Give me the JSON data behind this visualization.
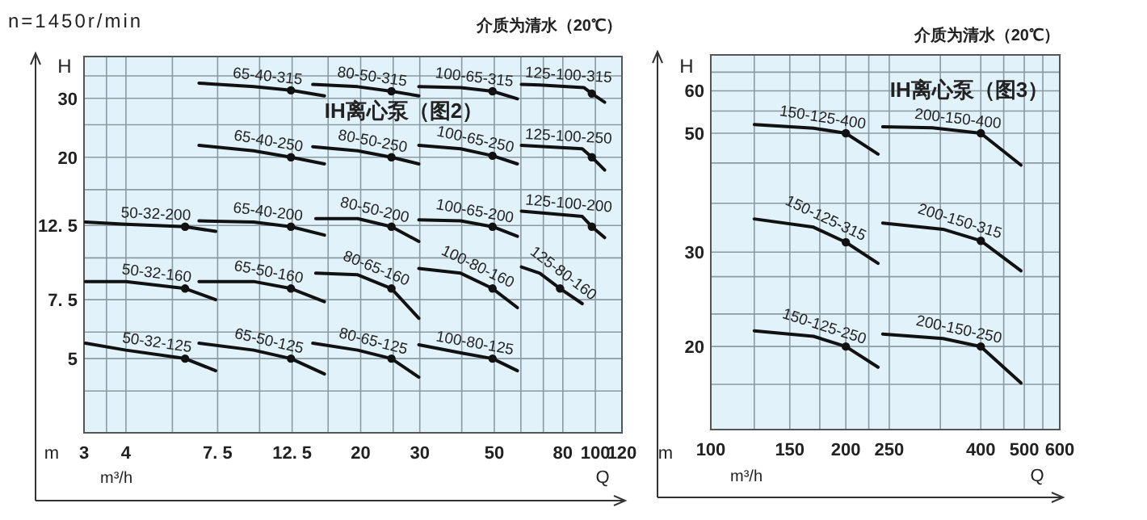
{
  "chart_data": [
    {
      "type": "line",
      "title": "IH离心泵（图2）",
      "xlabel": "Q",
      "ylabel": "H",
      "annotations": [
        "n=1450r/min",
        "介质为清水（20℃）",
        "m",
        "m³/h"
      ],
      "xlim": [
        3,
        120
      ],
      "xticks": [
        3,
        {
          "value": 3.5,
          "label": null
        },
        4,
        {
          "value": 5.5,
          "label": null
        },
        {
          "value": 7.5,
          "label": "7. 5"
        },
        {
          "value": 10,
          "label": null
        },
        {
          "value": 12.5,
          "label": "12. 5"
        },
        {
          "value": 16,
          "label": null
        },
        20,
        {
          "value": 25,
          "label": null
        },
        30,
        {
          "value": 40,
          "label": null
        },
        50,
        {
          "value": 60,
          "label": null
        },
        {
          "value": 70,
          "label": null
        },
        80,
        100,
        120
      ],
      "ylim": [
        3,
        40
      ],
      "yticks": [
        {
          "value": 4,
          "label": null
        },
        5,
        {
          "value": 6,
          "label": null
        },
        {
          "value": 7.5,
          "label": "7. 5"
        },
        {
          "value": 10,
          "label": null
        },
        {
          "value": 12.5,
          "label": "12. 5"
        },
        {
          "value": 16,
          "label": null
        },
        20,
        {
          "value": 25,
          "label": null
        },
        30,
        {
          "value": 35,
          "label": null
        }
      ],
      "grid": true,
      "log": "xy",
      "series": [
        {
          "name": "65-40-315",
          "type": "line",
          "color": "#111111",
          "x": [
            6.6,
            9.6,
            12.4,
            15.6
          ],
          "values": [
            33.3,
            32.5,
            31.7,
            30.5
          ]
        },
        {
          "name": "80-50-315",
          "type": "line",
          "color": "#111111",
          "x": [
            14.4,
            19.6,
            24.7,
            29.8
          ],
          "values": [
            33.0,
            32.5,
            31.5,
            30.5
          ]
        },
        {
          "name": "100-65-315",
          "type": "line",
          "color": "#111111",
          "x": [
            29.8,
            39.7,
            49.4,
            58.6
          ],
          "values": [
            32.5,
            32.3,
            31.5,
            29.9
          ]
        },
        {
          "name": "125-100-315",
          "type": "line",
          "color": "#111111",
          "x": [
            60.2,
            68.3,
            92.4,
            97.6,
            106.6
          ],
          "values": [
            33.0,
            32.9,
            32.3,
            31.0,
            29.2
          ]
        },
        {
          "name": "65-40-250",
          "type": "line",
          "color": "#111111",
          "x": [
            6.6,
            9.6,
            12.4,
            15.6
          ],
          "values": [
            21.7,
            20.9,
            20,
            19.1
          ]
        },
        {
          "name": "80-50-250",
          "type": "line",
          "color": "#111111",
          "x": [
            14.4,
            19.6,
            24.7,
            29.8
          ],
          "values": [
            21.5,
            20.9,
            20,
            19.1
          ]
        },
        {
          "name": "100-65-250",
          "type": "line",
          "color": "#111111",
          "x": [
            29.8,
            39.7,
            49.4,
            58.6
          ],
          "values": [
            21.7,
            21.2,
            20.2,
            19.1
          ]
        },
        {
          "name": "125-100-250",
          "type": "line",
          "color": "#111111",
          "x": [
            60.2,
            91.4,
            97.6,
            106.6
          ],
          "values": [
            21.7,
            21.2,
            20,
            18.3
          ]
        },
        {
          "name": "50-32-200",
          "type": "line",
          "color": "#111111",
          "x": [
            3.03,
            4,
            6.0,
            7.4
          ],
          "values": [
            12.8,
            12.6,
            12.4,
            12.0
          ]
        },
        {
          "name": "65-40-200",
          "type": "line",
          "color": "#111111",
          "x": [
            6.6,
            9.6,
            12.4,
            15.6
          ],
          "values": [
            12.9,
            12.8,
            12.4,
            11.7
          ]
        },
        {
          "name": "80-50-200",
          "type": "line",
          "color": "#111111",
          "x": [
            14.7,
            19.6,
            24.7,
            29.8
          ],
          "values": [
            13.1,
            13.1,
            12.4,
            11.2
          ]
        },
        {
          "name": "100-65-200",
          "type": "line",
          "color": "#111111",
          "x": [
            29.8,
            39.7,
            49.4,
            58.6
          ],
          "values": [
            13.0,
            12.9,
            12.4,
            11.6
          ]
        },
        {
          "name": "125-100-200",
          "type": "line",
          "color": "#111111",
          "x": [
            60.2,
            91.4,
            97.6,
            106.6
          ],
          "values": [
            13.8,
            13.3,
            12.4,
            11.5
          ]
        },
        {
          "name": "50-32-160",
          "type": "line",
          "color": "#111111",
          "x": [
            3.03,
            4,
            6.0,
            7.4
          ],
          "values": [
            8.5,
            8.5,
            8.1,
            7.5
          ]
        },
        {
          "name": "65-50-160",
          "type": "line",
          "color": "#111111",
          "x": [
            6.6,
            9.6,
            12.4,
            15.6
          ],
          "values": [
            8.5,
            8.5,
            8.1,
            7.4
          ]
        },
        {
          "name": "80-65-160",
          "type": "line",
          "color": "#111111",
          "x": [
            14.7,
            19.6,
            24.7,
            29.8
          ],
          "values": [
            9.0,
            8.9,
            8.1,
            6.6
          ]
        },
        {
          "name": "100-80-160",
          "type": "line",
          "color": "#111111",
          "x": [
            29.8,
            39.7,
            49.4,
            58.6
          ],
          "values": [
            9.3,
            9.0,
            8.1,
            7.1
          ]
        },
        {
          "name": "125-80-160",
          "type": "line",
          "color": "#111111",
          "x": [
            60.2,
            68.3,
            78.5,
            91.4
          ],
          "values": [
            9.4,
            9.0,
            8.1,
            7.3
          ]
        },
        {
          "name": "50-32-125",
          "type": "line",
          "color": "#111111",
          "x": [
            3.03,
            4,
            6.0,
            7.4
          ],
          "values": [
            5.56,
            5.3,
            5.0,
            4.6
          ]
        },
        {
          "name": "65-50-125",
          "type": "line",
          "color": "#111111",
          "x": [
            6.6,
            9.6,
            12.4,
            15.6
          ],
          "values": [
            5.56,
            5.3,
            5.0,
            4.5
          ]
        },
        {
          "name": "80-65-125",
          "type": "line",
          "color": "#111111",
          "x": [
            14.4,
            19.6,
            24.7,
            29.8
          ],
          "values": [
            5.56,
            5.3,
            5.0,
            4.4
          ]
        },
        {
          "name": "100-80-125",
          "type": "line",
          "color": "#111111",
          "x": [
            29.8,
            39.7,
            49.4,
            58.6
          ],
          "values": [
            5.5,
            5.2,
            5.0,
            4.6
          ]
        },
        {
          "type": "scatter",
          "marker": "circle",
          "color": "#111111",
          "x": [
            12.4,
            24.7,
            49.4,
            97.6,
            12.4,
            24.7,
            49.4,
            97.6,
            6.0,
            12.4,
            24.7,
            49.4,
            97.6,
            6.0,
            12.4,
            24.7,
            49.4,
            78.5,
            6.0,
            12.4,
            24.7,
            49.4
          ],
          "values": [
            31.7,
            31.5,
            31.5,
            31.0,
            20,
            20,
            20.2,
            20,
            12.4,
            12.4,
            12.4,
            12.4,
            12.4,
            8.1,
            8.1,
            8.1,
            8.1,
            8.1,
            5.0,
            5.0,
            5.0,
            5.0
          ]
        }
      ]
    },
    {
      "type": "line",
      "title": "IH离心泵（图3）",
      "xlabel": "Q",
      "ylabel": "H",
      "annotations": [
        "介质为清水（20℃）",
        "m",
        "m³/h"
      ],
      "xlim": [
        100,
        600
      ],
      "xticks": [
        100,
        {
          "value": 125,
          "label": null
        },
        150,
        {
          "value": 175,
          "label": null
        },
        200,
        {
          "value": 225,
          "label": null
        },
        250,
        {
          "value": 325,
          "label": null
        },
        400,
        {
          "value": 450,
          "label": null
        },
        500,
        {
          "value": 550,
          "label": null
        },
        600
      ],
      "ylim": [
        14,
        70
      ],
      "yticks": [
        {
          "value": 17,
          "label": null
        },
        20,
        {
          "value": 23,
          "label": null
        },
        {
          "value": 27,
          "label": null
        },
        30,
        {
          "value": 37,
          "label": null
        },
        {
          "value": 44,
          "label": null
        },
        50,
        {
          "value": 55,
          "label": null
        },
        60,
        {
          "value": 65,
          "label": null
        }
      ],
      "grid": true,
      "log": "xy",
      "series": [
        {
          "name": "150-125-400",
          "type": "line",
          "color": "#111111",
          "x": [
            125,
            169.4,
            200,
            236
          ],
          "values": [
            51.9,
            51.1,
            50,
            45.7
          ]
        },
        {
          "name": "200-150-400",
          "type": "line",
          "color": "#111111",
          "x": [
            241.7,
            312,
            400,
            491.7
          ],
          "values": [
            51.4,
            51.2,
            50,
            43.6
          ]
        },
        {
          "name": "150-125-315",
          "type": "line",
          "color": "#111111",
          "x": [
            125,
            169.4,
            200,
            236
          ],
          "values": [
            34.6,
            33.4,
            31.3,
            28.6
          ]
        },
        {
          "name": "200-150-315",
          "type": "line",
          "color": "#111111",
          "x": [
            241.7,
            329.5,
            400,
            491.7
          ],
          "values": [
            34.0,
            33.1,
            31.5,
            27.7
          ]
        },
        {
          "name": "150-125-250",
          "type": "line",
          "color": "#111111",
          "x": [
            125,
            169.4,
            200,
            236
          ],
          "values": [
            21.4,
            20.9,
            20,
            18.3
          ]
        },
        {
          "name": "200-150-250",
          "type": "line",
          "color": "#111111",
          "x": [
            241.7,
            329.5,
            400,
            491.7
          ],
          "values": [
            21.1,
            20.7,
            20,
            17.1
          ]
        },
        {
          "type": "scatter",
          "marker": "circle",
          "color": "#111111",
          "x": [
            200,
            400,
            200,
            400,
            200,
            400
          ],
          "values": [
            50,
            50,
            31.3,
            31.5,
            20,
            20
          ]
        }
      ]
    }
  ]
}
